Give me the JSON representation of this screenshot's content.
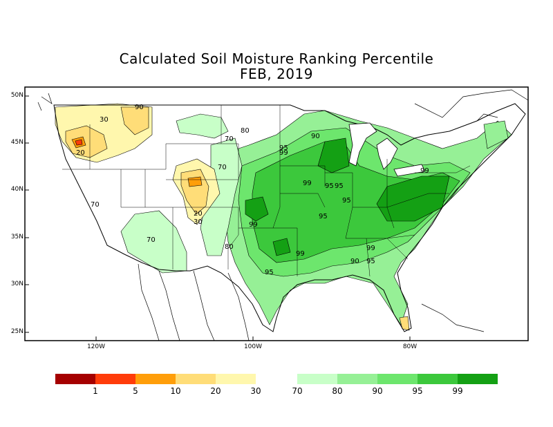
{
  "title": "Calculated Soil Moisture Ranking Percentile",
  "subtitle": "FEB, 2019",
  "lat_labels": [
    "50N",
    "45N",
    "40N",
    "35N",
    "30N",
    "25N"
  ],
  "lon_labels": [
    "120W",
    "100W",
    "80W"
  ],
  "contour_labels": [
    "30",
    "20",
    "70",
    "80",
    "90",
    "95",
    "99",
    "70",
    "20",
    "30",
    "70",
    "80",
    "95",
    "99",
    "99",
    "95",
    "95",
    "95",
    "99",
    "99",
    "90",
    "95",
    "95",
    "99",
    "70",
    "90"
  ],
  "legend": {
    "dry": {
      "colors": [
        "#a50000",
        "#ff3c0a",
        "#ff9e0a",
        "#ffdd78",
        "#fff7ad"
      ],
      "labels": [
        "1",
        "5",
        "10",
        "20",
        "30"
      ]
    },
    "wet": {
      "colors": [
        "#c8ffc8",
        "#96f096",
        "#6de66d",
        "#3cc83c",
        "#14a014"
      ],
      "labels": [
        "70",
        "80",
        "90",
        "95",
        "99"
      ]
    }
  }
}
